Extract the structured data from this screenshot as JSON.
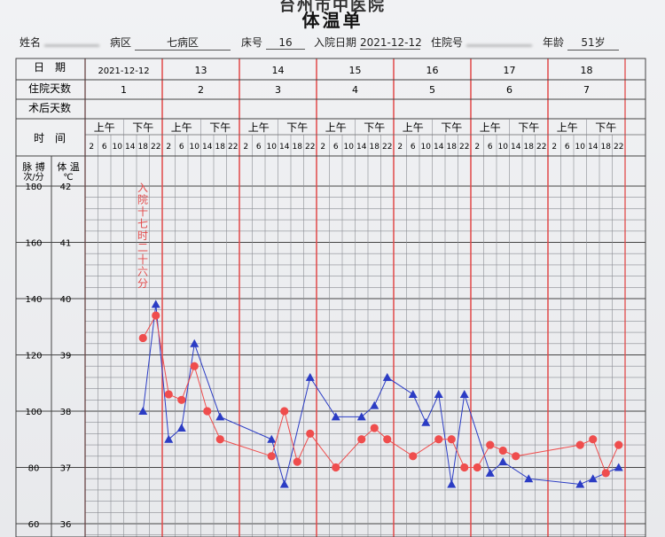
{
  "header": {
    "hospital": "台州市中医院",
    "title": "体温单"
  },
  "patient": {
    "name_label": "姓名",
    "name_value": "",
    "ward_label": "病区",
    "ward_value": "七病区",
    "bed_label": "床号",
    "bed_value": "16",
    "admit_label": "入院日期",
    "admit_value": "2021-12-12",
    "inpatient_label": "住院号",
    "inpatient_value": "",
    "age_label": "年龄",
    "age_value": "51岁"
  },
  "table": {
    "date_label": "日　期",
    "days_label": "住院天数",
    "postop_label": "术后天数",
    "time_label": "时　间",
    "am_label": "上午",
    "pm_label": "下午",
    "hours": [
      "2",
      "6",
      "10",
      "14",
      "18",
      "22"
    ],
    "dates": [
      "2021-12-12",
      "13",
      "14",
      "15",
      "16",
      "17",
      "18"
    ],
    "hospital_days": [
      "1",
      "2",
      "3",
      "4",
      "5",
      "6",
      "7"
    ],
    "pulse_label": "脉 搏",
    "pulse_unit": "次/分",
    "temp_label": "体 温",
    "temp_unit": "℃",
    "pulse_ticks": [
      "180",
      "160",
      "140",
      "120",
      "100",
      "80",
      "60"
    ],
    "temp_ticks": [
      "42",
      "41",
      "40",
      "39",
      "38",
      "37",
      "36"
    ],
    "admit_note": "入院十七时二十六分"
  },
  "chart_data": {
    "type": "line",
    "xlabel": "时间",
    "ylabel_left": "脉搏 次/分",
    "ylabel_right": "体温 ℃",
    "pulse_range": [
      60,
      180
    ],
    "temp_range": [
      36,
      42
    ],
    "series": [
      {
        "color": "#2b3cc4",
        "marker": "triangle",
        "points": [
          {
            "day": 0,
            "slot": 4,
            "value": 38.0
          },
          {
            "day": 0,
            "slot": 5,
            "value": 39.9
          },
          {
            "day": 1,
            "slot": 0,
            "value": 37.5
          },
          {
            "day": 1,
            "slot": 1,
            "value": 37.7
          },
          {
            "day": 1,
            "slot": 2,
            "value": 39.2
          },
          {
            "day": 1,
            "slot": 4,
            "value": 37.9
          },
          {
            "day": 2,
            "slot": 2,
            "value": 37.5
          },
          {
            "day": 2,
            "slot": 3,
            "value": 36.7
          },
          {
            "day": 2,
            "slot": 5,
            "value": 38.6
          },
          {
            "day": 3,
            "slot": 1,
            "value": 37.9
          },
          {
            "day": 3,
            "slot": 3,
            "value": 37.9
          },
          {
            "day": 3,
            "slot": 4,
            "value": 38.1
          },
          {
            "day": 3,
            "slot": 5,
            "value": 38.6
          },
          {
            "day": 4,
            "slot": 1,
            "value": 38.3
          },
          {
            "day": 4,
            "slot": 2,
            "value": 37.8
          },
          {
            "day": 4,
            "slot": 3,
            "value": 38.3
          },
          {
            "day": 4,
            "slot": 4,
            "value": 36.7
          },
          {
            "day": 4,
            "slot": 5,
            "value": 38.3
          },
          {
            "day": 5,
            "slot": 1,
            "value": 36.9
          },
          {
            "day": 5,
            "slot": 2,
            "value": 37.1
          },
          {
            "day": 5,
            "slot": 4,
            "value": 36.8
          },
          {
            "day": 6,
            "slot": 2,
            "value": 36.7
          },
          {
            "day": 6,
            "slot": 3,
            "value": 36.8
          },
          {
            "day": 6,
            "slot": 5,
            "value": 37.0
          }
        ]
      },
      {
        "color": "#ef4d4d",
        "marker": "circle",
        "points": [
          {
            "day": 0,
            "slot": 4,
            "value": 39.3
          },
          {
            "day": 0,
            "slot": 5,
            "value": 39.7
          },
          {
            "day": 1,
            "slot": 0,
            "value": 38.3
          },
          {
            "day": 1,
            "slot": 1,
            "value": 38.2
          },
          {
            "day": 1,
            "slot": 2,
            "value": 38.8
          },
          {
            "day": 1,
            "slot": 3,
            "value": 38.0
          },
          {
            "day": 1,
            "slot": 4,
            "value": 37.5
          },
          {
            "day": 2,
            "slot": 2,
            "value": 37.2
          },
          {
            "day": 2,
            "slot": 3,
            "value": 38.0
          },
          {
            "day": 2,
            "slot": 4,
            "value": 37.1
          },
          {
            "day": 2,
            "slot": 5,
            "value": 37.6
          },
          {
            "day": 3,
            "slot": 1,
            "value": 37.0
          },
          {
            "day": 3,
            "slot": 3,
            "value": 37.5
          },
          {
            "day": 3,
            "slot": 4,
            "value": 37.7
          },
          {
            "day": 3,
            "slot": 5,
            "value": 37.5
          },
          {
            "day": 4,
            "slot": 1,
            "value": 37.2
          },
          {
            "day": 4,
            "slot": 3,
            "value": 37.5
          },
          {
            "day": 4,
            "slot": 4,
            "value": 37.5
          },
          {
            "day": 4,
            "slot": 5,
            "value": 37.0
          },
          {
            "day": 5,
            "slot": 0,
            "value": 37.0
          },
          {
            "day": 5,
            "slot": 1,
            "value": 37.4
          },
          {
            "day": 5,
            "slot": 2,
            "value": 37.3
          },
          {
            "day": 5,
            "slot": 3,
            "value": 37.2
          },
          {
            "day": 6,
            "slot": 2,
            "value": 37.4
          },
          {
            "day": 6,
            "slot": 3,
            "value": 37.5
          },
          {
            "day": 6,
            "slot": 4,
            "value": 36.9
          },
          {
            "day": 6,
            "slot": 5,
            "value": 37.4
          }
        ]
      }
    ]
  }
}
